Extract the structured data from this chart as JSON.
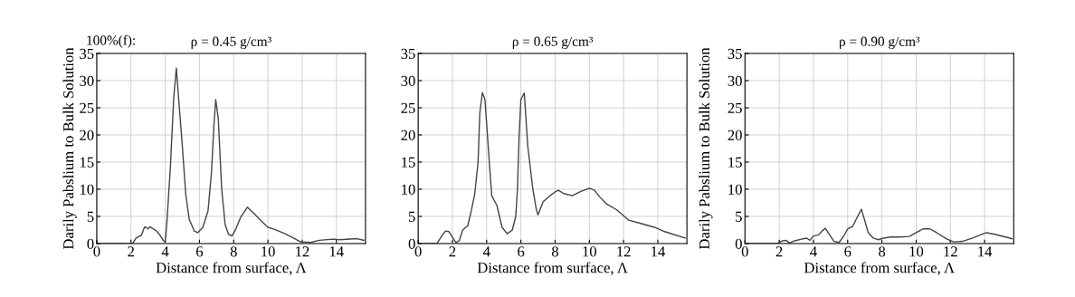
{
  "chart_data": [
    {
      "type": "line",
      "title": "ρ = 0.45 g/cm³",
      "xlabel": "Distance from surface, Λ",
      "ylabel": "Darily Pabslium to Bulk Solution",
      "annotations": [
        "100%(f):"
      ],
      "xlim": [
        0,
        15.7
      ],
      "ylim": [
        0,
        35
      ],
      "xticks": [
        0,
        2,
        4,
        6,
        8,
        10,
        12,
        14
      ],
      "yticks": [
        0,
        5,
        10,
        15,
        20,
        25,
        30,
        35
      ],
      "grid": true,
      "series": [
        {
          "color": "#444444",
          "x": [
            0,
            2.1,
            2.3,
            2.6,
            2.8,
            3.0,
            3.1,
            3.5,
            3.7,
            3.9,
            4.0,
            4.1,
            4.3,
            4.5,
            4.65,
            4.8,
            5.0,
            5.2,
            5.4,
            5.7,
            5.9,
            6.2,
            6.5,
            6.7,
            6.85,
            6.95,
            7.1,
            7.3,
            7.5,
            7.7,
            7.9,
            8.1,
            8.4,
            8.8,
            9.2,
            9.6,
            10.0,
            10.4,
            11.0,
            11.5,
            11.9,
            12.5,
            13.0,
            13.8,
            14.2,
            15.2,
            15.6
          ],
          "values": [
            0,
            0,
            1,
            1.5,
            3.1,
            2.7,
            3.1,
            2.3,
            1.5,
            0.5,
            0.3,
            4,
            14,
            27,
            32.3,
            26,
            18,
            9,
            4.5,
            2.3,
            2.0,
            3,
            6,
            13,
            22,
            26.5,
            23,
            10,
            3.5,
            1.7,
            1.4,
            2.5,
            4.8,
            6.7,
            5.5,
            4.2,
            3.0,
            2.6,
            1.8,
            1.0,
            0.3,
            0.2,
            0.6,
            0.8,
            0.7,
            0.9,
            0.6
          ]
        }
      ]
    },
    {
      "type": "line",
      "title": "ρ = 0.65 g/cm³",
      "xlabel": "Distance from surface, Λ",
      "y2label": "Darily Pabslium to Bulk Solution",
      "xlim": [
        0,
        15.7
      ],
      "ylim": [
        0,
        35
      ],
      "xticks": [
        0,
        2,
        4,
        6,
        8,
        10,
        12,
        14
      ],
      "yticks": [
        0,
        5,
        10,
        15,
        20,
        25,
        30,
        35
      ],
      "grid": true,
      "series": [
        {
          "color": "#444444",
          "x": [
            0,
            1.1,
            1.4,
            1.6,
            1.8,
            2.0,
            2.2,
            2.4,
            2.6,
            2.9,
            3.1,
            3.3,
            3.5,
            3.6,
            3.75,
            3.9,
            4.0,
            4.2,
            4.3,
            4.6,
            4.9,
            5.2,
            5.5,
            5.7,
            5.8,
            5.9,
            6.0,
            6.2,
            6.4,
            6.7,
            6.9,
            7.0,
            7.3,
            7.7,
            8.0,
            8.2,
            8.5,
            9.0,
            9.5,
            10.0,
            10.3,
            10.6,
            11.0,
            11.6,
            12.3,
            13.0,
            13.8,
            14.4,
            15.6
          ],
          "values": [
            0,
            0,
            1.5,
            2.3,
            2.2,
            1.2,
            0.2,
            0.5,
            2.5,
            3.3,
            6,
            9,
            15,
            24,
            27.8,
            26.5,
            22,
            13,
            8.8,
            7,
            3,
            1.8,
            2.5,
            5,
            10,
            20,
            26.5,
            27.7,
            18,
            10,
            6.3,
            5.3,
            7.7,
            8.8,
            9.5,
            9.8,
            9.2,
            8.8,
            9.6,
            10.2,
            9.8,
            8.6,
            7.3,
            6.2,
            4.3,
            3.7,
            3.0,
            2.2,
            1.0
          ]
        }
      ]
    },
    {
      "type": "line",
      "title": "ρ = 0.90 g/cm³",
      "xlabel": "Distance from surface, Λ",
      "xlim": [
        0,
        15.7
      ],
      "ylim": [
        0,
        35
      ],
      "xticks": [
        0,
        2,
        4,
        6,
        8,
        10,
        12,
        14
      ],
      "yticks": [
        0,
        5,
        10,
        15,
        20,
        25,
        30,
        35
      ],
      "grid": true,
      "series": [
        {
          "color": "#444444",
          "x": [
            0,
            1.9,
            2.2,
            2.4,
            2.6,
            2.9,
            3.3,
            3.6,
            3.8,
            4.0,
            4.3,
            4.5,
            4.7,
            4.9,
            5.2,
            5.5,
            5.8,
            6.0,
            6.3,
            6.5,
            6.8,
            7.0,
            7.2,
            7.5,
            7.8,
            8.1,
            8.5,
            9.0,
            9.6,
            10.0,
            10.4,
            10.8,
            11.2,
            11.8,
            12.2,
            12.7,
            13.3,
            14.1,
            14.6,
            15.6
          ],
          "values": [
            0,
            0,
            0.5,
            0.6,
            0.1,
            0.5,
            0.8,
            1.0,
            0.6,
            1.4,
            1.6,
            2.3,
            2.8,
            1.8,
            0.4,
            0.2,
            1.5,
            2.7,
            3.2,
            4.5,
            6.3,
            4.2,
            2.0,
            1.0,
            0.7,
            1.0,
            1.2,
            1.2,
            1.3,
            2.0,
            2.7,
            2.7,
            2.0,
            0.8,
            0.3,
            0.4,
            1.0,
            2.0,
            1.7,
            0.9
          ]
        }
      ]
    }
  ]
}
